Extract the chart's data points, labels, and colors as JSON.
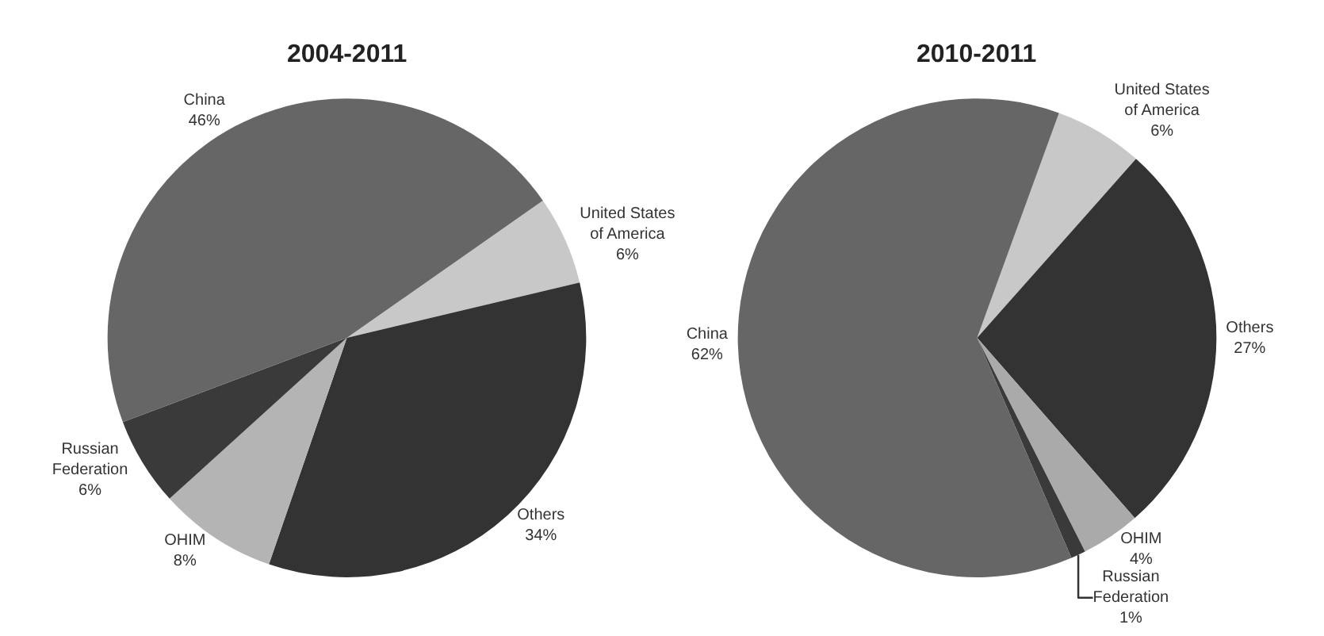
{
  "chart_data": [
    {
      "type": "pie",
      "title": "2004-2011",
      "categories": [
        "United States of America",
        "Others",
        "OHIM",
        "Russian Federation",
        "China"
      ],
      "values": [
        6,
        34,
        8,
        6,
        46
      ],
      "colors": [
        "#c8c8c8",
        "#333333",
        "#b4b4b4",
        "#3a3a3a",
        "#666666"
      ],
      "value_labels": [
        "6%",
        "34%",
        "8%",
        "6%",
        "46%"
      ]
    },
    {
      "type": "pie",
      "title": "2010-2011",
      "categories": [
        "United States of America",
        "Others",
        "OHIM",
        "Russian Federation",
        "China"
      ],
      "values": [
        6,
        27,
        4,
        1,
        62
      ],
      "colors": [
        "#c8c8c8",
        "#333333",
        "#aaaaaa",
        "#3a3a3a",
        "#666666"
      ],
      "value_labels": [
        "6%",
        "27%",
        "4%",
        "1%",
        "62%"
      ]
    }
  ]
}
